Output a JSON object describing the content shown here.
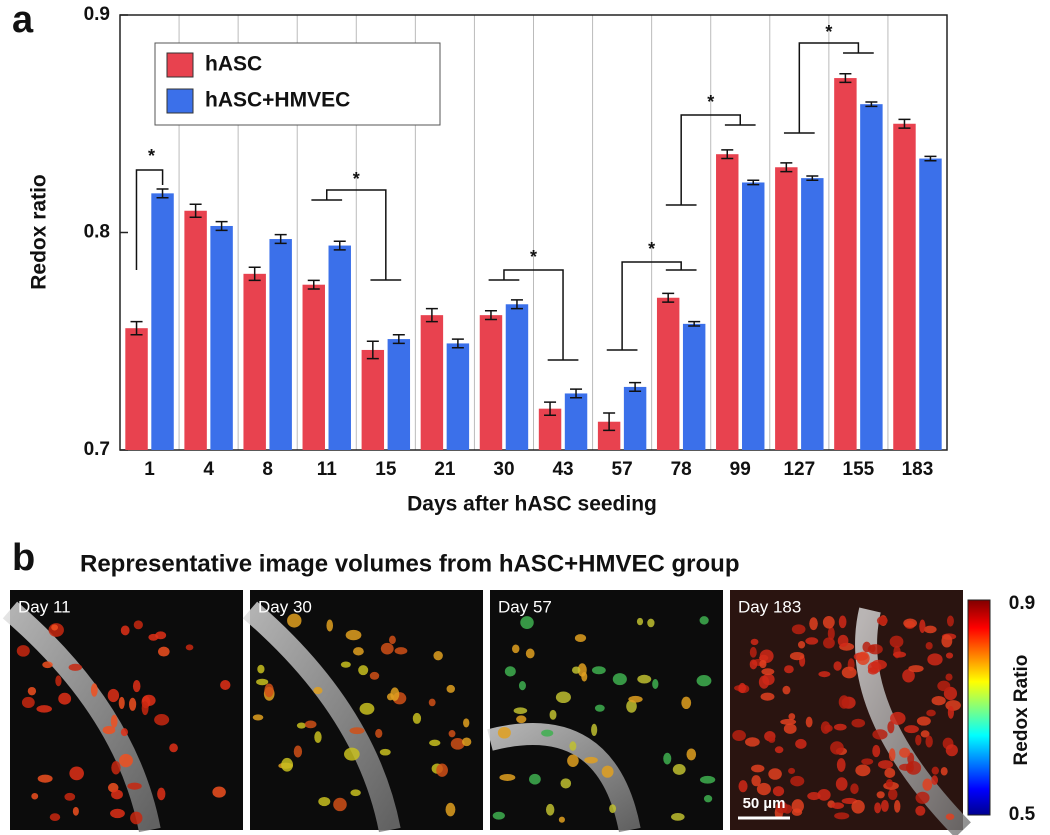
{
  "chart_data": {
    "type": "bar",
    "panel_label": "a",
    "x_label": "Days after hASC seeding",
    "y_label": "Redox ratio",
    "categories": [
      "1",
      "4",
      "8",
      "11",
      "15",
      "21",
      "30",
      "43",
      "57",
      "78",
      "99",
      "127",
      "155",
      "183"
    ],
    "series": [
      {
        "name": "hASC",
        "color": "#e8424f",
        "values": [
          0.756,
          0.81,
          0.781,
          0.776,
          0.746,
          0.762,
          0.762,
          0.719,
          0.713,
          0.77,
          0.836,
          0.83,
          0.871,
          0.85
        ],
        "errors": [
          0.003,
          0.003,
          0.003,
          0.002,
          0.004,
          0.003,
          0.002,
          0.003,
          0.004,
          0.002,
          0.002,
          0.002,
          0.002,
          0.002
        ]
      },
      {
        "name": "hASC+HMVEC",
        "color": "#3b70ea",
        "values": [
          0.818,
          0.803,
          0.797,
          0.794,
          0.751,
          0.749,
          0.767,
          0.726,
          0.729,
          0.758,
          0.823,
          0.825,
          0.859,
          0.834
        ],
        "errors": [
          0.002,
          0.002,
          0.002,
          0.002,
          0.002,
          0.002,
          0.002,
          0.002,
          0.002,
          0.001,
          0.001,
          0.001,
          0.001,
          0.001
        ]
      }
    ],
    "ylim": [
      0.7,
      0.9
    ],
    "yticks": [
      0.7,
      0.8,
      0.9
    ],
    "legend": "upper left",
    "significance_labels": [
      "*",
      "*",
      "*",
      "*",
      "*",
      "*"
    ]
  },
  "panel_b": {
    "panel_label": "b",
    "title": "Representative image volumes from hASC+HMVEC group",
    "images": [
      "Day 11",
      "Day 30",
      "Day 57",
      "Day 183"
    ],
    "scale_bar": "50 µm",
    "colorbar_label": "Redox Ratio",
    "colorbar_ticks": [
      0.9,
      0.5
    ]
  }
}
